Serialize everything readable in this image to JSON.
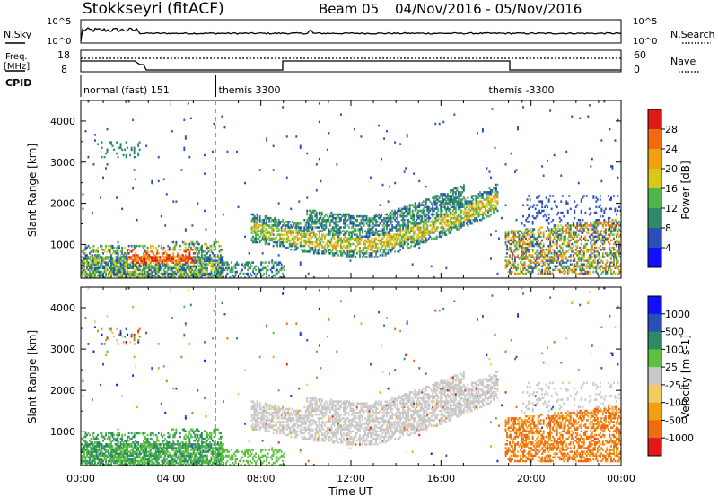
{
  "header": {
    "radar": "Stokkseyri (fitACF)",
    "beam": "Beam 05",
    "date_range": "04/Nov/2016 - 05/Nov/2016"
  },
  "strip_labels": {
    "nsky": "N.Sky",
    "nsearch": "N.Search",
    "freq_line1": "Freq.",
    "freq_line2": "[MHz]",
    "nave": "Nave",
    "cpid": "CPID",
    "nsky_ticks": [
      "10^5",
      "10^0"
    ],
    "nsearch_ticks": [
      "10^5",
      "10^0"
    ],
    "freq_ticks": [
      "18",
      "8"
    ],
    "nave_ticks": [
      "60",
      "0"
    ]
  },
  "cpid_segments": [
    {
      "label": "normal (fast) 151",
      "start_hour": 0
    },
    {
      "label": "themis 3300",
      "start_hour": 6
    },
    {
      "label": "themis -3300",
      "start_hour": 18
    }
  ],
  "chart_data": [
    {
      "type": "heatmap",
      "panel": "power",
      "ylabel": "Slant Range [km]",
      "ylim": [
        180,
        4500
      ],
      "yticks": [
        1000,
        2000,
        3000,
        4000
      ],
      "xlim": [
        0,
        24
      ],
      "xticks": [
        "00:00",
        "04:00",
        "08:00",
        "12:00",
        "16:00",
        "20:00",
        "00:00"
      ],
      "colorbar": {
        "label": "Power [dB]",
        "ticks": [
          "28",
          "24",
          "20",
          "16",
          "12",
          "8",
          "4"
        ],
        "colors": [
          "#1010ff",
          "#2a4fb8",
          "#2e8a66",
          "#4fb54a",
          "#d8c81a",
          "#f0a010",
          "#f06a10",
          "#e01818"
        ]
      },
      "echo_regions": [
        {
          "x0": 0.0,
          "x1": 6.0,
          "y0": 200,
          "y1": 1100,
          "note": "near-range band"
        },
        {
          "x0": 6.0,
          "x1": 7.5,
          "y0": 250,
          "y1": 550,
          "note": "near-range band"
        },
        {
          "x0": 7.5,
          "x1": 18.5,
          "y0": 900,
          "y1": 2500,
          "note": "arc"
        },
        {
          "x0": 18.8,
          "x1": 24.0,
          "y0": 250,
          "y1": 2200,
          "note": "late band"
        }
      ]
    },
    {
      "type": "heatmap",
      "panel": "velocity",
      "ylabel": "Slant Range [km]",
      "xlabel": "Time UT",
      "ylim": [
        180,
        4500
      ],
      "yticks": [
        1000,
        2000,
        3000,
        4000
      ],
      "xlim": [
        0,
        24
      ],
      "xticks": [
        "00:00",
        "04:00",
        "08:00",
        "12:00",
        "16:00",
        "20:00",
        "00:00"
      ],
      "colorbar": {
        "label": "Velocity [m s-1]",
        "ticks": [
          "1000",
          "500",
          "100",
          "25",
          "-25",
          "-100",
          "-500",
          "-1000"
        ],
        "colors": [
          "#e01818",
          "#f06a10",
          "#f0a010",
          "#f2cc60",
          "#c8c8c8",
          "#5cc040",
          "#2e8a66",
          "#2a4fb8",
          "#1010ff"
        ]
      }
    }
  ]
}
